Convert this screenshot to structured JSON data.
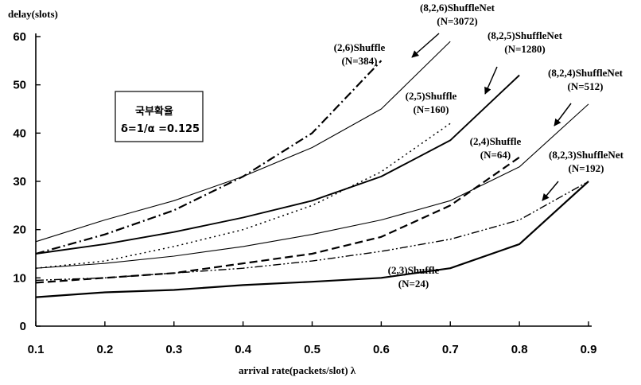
{
  "chart_data": {
    "type": "line",
    "xlabel": "arrival rate(packets/slot) λ",
    "ylabel": "delay(slots)",
    "xlim": [
      0.1,
      0.9
    ],
    "ylim": [
      0,
      60
    ],
    "x_ticks": [
      "0.1",
      "0.2",
      "0.3",
      "0.4",
      "0.5",
      "0.6",
      "0.7",
      "0.8",
      "0.9"
    ],
    "y_ticks": [
      "0",
      "10",
      "20",
      "30",
      "40",
      "50",
      "60"
    ],
    "grid": false,
    "legend_box": {
      "line1": "국부확율",
      "line2": "δ=1/α =0.125"
    },
    "series": [
      {
        "name": "(8,2,6)ShuffleNet (N=3072)",
        "line1": "(8,2,6)ShuffleNet",
        "line2": "(N=3072)",
        "style": "solid",
        "weight": 1.1,
        "x": [
          0.1,
          0.2,
          0.3,
          0.4,
          0.5,
          0.6,
          0.7
        ],
        "y": [
          17.5,
          22,
          26,
          31,
          37,
          45,
          59
        ]
      },
      {
        "name": "(2,6)Shuffle (N=384)",
        "line1": "(2,6)Shuffle",
        "line2": "(N=384)",
        "style": "dashdot",
        "weight": 2.2,
        "x": [
          0.1,
          0.2,
          0.3,
          0.4,
          0.5,
          0.6
        ],
        "y": [
          15,
          19,
          24,
          31,
          40,
          55
        ]
      },
      {
        "name": "(8,2,5)ShuffleNet (N=1280)",
        "line1": "(8,2,5)ShuffleNet",
        "line2": "(N=1280)",
        "style": "solid",
        "weight": 1.9,
        "x": [
          0.1,
          0.2,
          0.3,
          0.4,
          0.5,
          0.6,
          0.7,
          0.8
        ],
        "y": [
          15,
          17,
          19.5,
          22.5,
          26,
          31,
          38.5,
          52
        ]
      },
      {
        "name": "(2,5)Shuffle (N=160)",
        "line1": "(2,5)Shuffle",
        "line2": "(N=160)",
        "style": "dotted",
        "weight": 1.5,
        "x": [
          0.1,
          0.2,
          0.3,
          0.4,
          0.5,
          0.6,
          0.7
        ],
        "y": [
          12,
          13.5,
          16.5,
          20,
          25,
          32,
          42
        ]
      },
      {
        "name": "(8,2,4)ShuffleNet (N=512)",
        "line1": "(8,2,4)ShuffleNet",
        "line2": "(N=512)",
        "style": "solid",
        "weight": 1.1,
        "x": [
          0.1,
          0.2,
          0.3,
          0.4,
          0.5,
          0.6,
          0.7,
          0.8,
          0.9
        ],
        "y": [
          12,
          13,
          14.5,
          16.5,
          19,
          22,
          26,
          33,
          46
        ]
      },
      {
        "name": "(2,4)Shuffle (N=64)",
        "line1": "(2,4)Shuffle",
        "line2": "(N=64)",
        "style": "dashed",
        "weight": 2.2,
        "x": [
          0.1,
          0.2,
          0.3,
          0.4,
          0.5,
          0.6,
          0.7,
          0.8
        ],
        "y": [
          9,
          10,
          11,
          13,
          15,
          18.5,
          25,
          35
        ]
      },
      {
        "name": "(8,2,3)ShuffleNet (N=192)",
        "line1": "(8,2,3)ShuffleNet",
        "line2": "(N=192)",
        "style": "dashdotdot",
        "weight": 1.4,
        "x": [
          0.1,
          0.2,
          0.3,
          0.4,
          0.5,
          0.6,
          0.7,
          0.8,
          0.9
        ],
        "y": [
          9.5,
          10,
          11,
          12,
          13.5,
          15.5,
          18,
          22,
          30
        ]
      },
      {
        "name": "(2,3)Shuffle (N=24)",
        "line1": "(2,3)Shuffle",
        "line2": "(N=24)",
        "style": "solid",
        "weight": 2.2,
        "x": [
          0.1,
          0.2,
          0.3,
          0.4,
          0.5,
          0.6,
          0.7,
          0.8,
          0.9
        ],
        "y": [
          6,
          7,
          7.5,
          8.5,
          9.2,
          10,
          12,
          17,
          30
        ]
      }
    ]
  }
}
